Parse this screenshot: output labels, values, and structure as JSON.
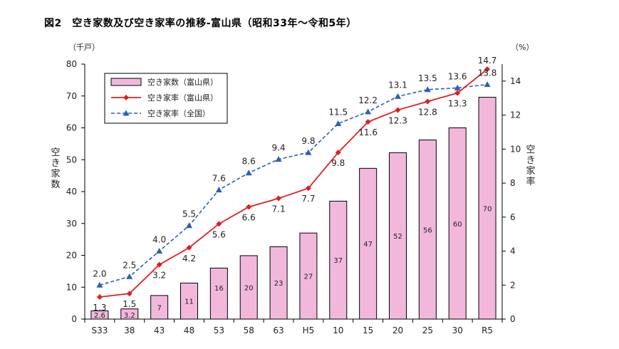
{
  "title": "図2　空き家数及び空き家率の推移-富山県（昭和33年～令和5年）",
  "chart_data": {
    "type": "bar+line",
    "categories": [
      "S33",
      "38",
      "43",
      "48",
      "53",
      "58",
      "63",
      "H5",
      "10",
      "15",
      "20",
      "25",
      "30",
      "R5"
    ],
    "left_axis": {
      "unit": "（千戸）",
      "label": "空き家数",
      "range": [
        0,
        80
      ],
      "ticks": [
        "0",
        "10",
        "20",
        "30",
        "40",
        "50",
        "60",
        "70",
        "80"
      ]
    },
    "right_axis": {
      "unit": "（%）",
      "label": "空き家率",
      "range": [
        0,
        15
      ],
      "ticks": [
        "0",
        "2",
        "4",
        "6",
        "8",
        "10",
        "12",
        "14"
      ]
    },
    "series": [
      {
        "name": "空き家数（富山県）",
        "type": "bar",
        "axis": "left",
        "color": "#f2b8dc",
        "values": [
          2.6,
          3.2,
          7.4,
          11.3,
          16.0,
          19.9,
          22.7,
          27.0,
          37.0,
          47.3,
          52.2,
          56.2,
          60.0,
          69.6
        ],
        "labels": [
          "2.6",
          "3.2",
          "7",
          "11",
          "16",
          "20",
          "23",
          "27",
          "37",
          "47",
          "52",
          "56",
          "60",
          "70"
        ]
      },
      {
        "name": "空き家率（富山県）",
        "type": "line",
        "axis": "right",
        "color": "#e02020",
        "values": [
          1.3,
          1.5,
          3.2,
          4.2,
          5.6,
          6.6,
          7.1,
          7.7,
          9.8,
          11.6,
          12.3,
          12.8,
          13.3,
          14.7
        ],
        "labels": [
          "1.3",
          "1.5",
          "3.2",
          "4.2",
          "5.6",
          "6.6",
          "7.1",
          "7.7",
          "9.8",
          "11.6",
          "12.3",
          "12.8",
          "13.3",
          "14.7"
        ]
      },
      {
        "name": "空き家率（全国）",
        "type": "line-dashed",
        "axis": "right",
        "color": "#2b5fb5",
        "values": [
          2.0,
          2.5,
          4.0,
          5.5,
          7.6,
          8.6,
          9.4,
          9.8,
          11.5,
          12.2,
          13.1,
          13.5,
          13.6,
          13.8
        ],
        "labels": [
          "2.0",
          "2.5",
          "4.0",
          "5.5",
          "7.6",
          "8.6",
          "9.4",
          "9.8",
          "11.5",
          "12.2",
          "13.1",
          "13.5",
          "13.6",
          "13.8"
        ]
      }
    ],
    "legend_position": "top-left",
    "grid": false
  }
}
